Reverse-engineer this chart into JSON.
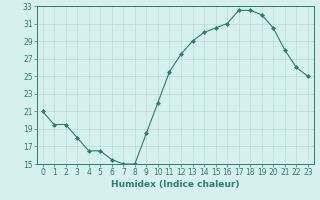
{
  "x": [
    0,
    1,
    2,
    3,
    4,
    5,
    6,
    7,
    8,
    9,
    10,
    11,
    12,
    13,
    14,
    15,
    16,
    17,
    18,
    19,
    20,
    21,
    22,
    23
  ],
  "y": [
    21,
    19.5,
    19.5,
    18,
    16.5,
    16.5,
    15.5,
    15,
    15,
    18.5,
    22,
    25.5,
    27.5,
    29,
    30,
    30.5,
    31,
    32.5,
    32.5,
    32,
    30.5,
    28,
    26,
    25
  ],
  "line_color": "#2e7d6e",
  "marker": "D",
  "marker_size": 2.0,
  "bg_color": "#d6f0ee",
  "grid_color": "#b8dbd8",
  "xlabel": "Humidex (Indice chaleur)",
  "ylabel": "",
  "ylim": [
    15,
    33
  ],
  "xlim": [
    -0.5,
    23.5
  ],
  "yticks": [
    15,
    17,
    19,
    21,
    23,
    25,
    27,
    29,
    31,
    33
  ],
  "xticks": [
    0,
    1,
    2,
    3,
    4,
    5,
    6,
    7,
    8,
    9,
    10,
    11,
    12,
    13,
    14,
    15,
    16,
    17,
    18,
    19,
    20,
    21,
    22,
    23
  ],
  "tick_color": "#2e7d6e",
  "label_color": "#2e7d6e",
  "tick_fontsize": 5.5,
  "xlabel_fontsize": 6.5
}
